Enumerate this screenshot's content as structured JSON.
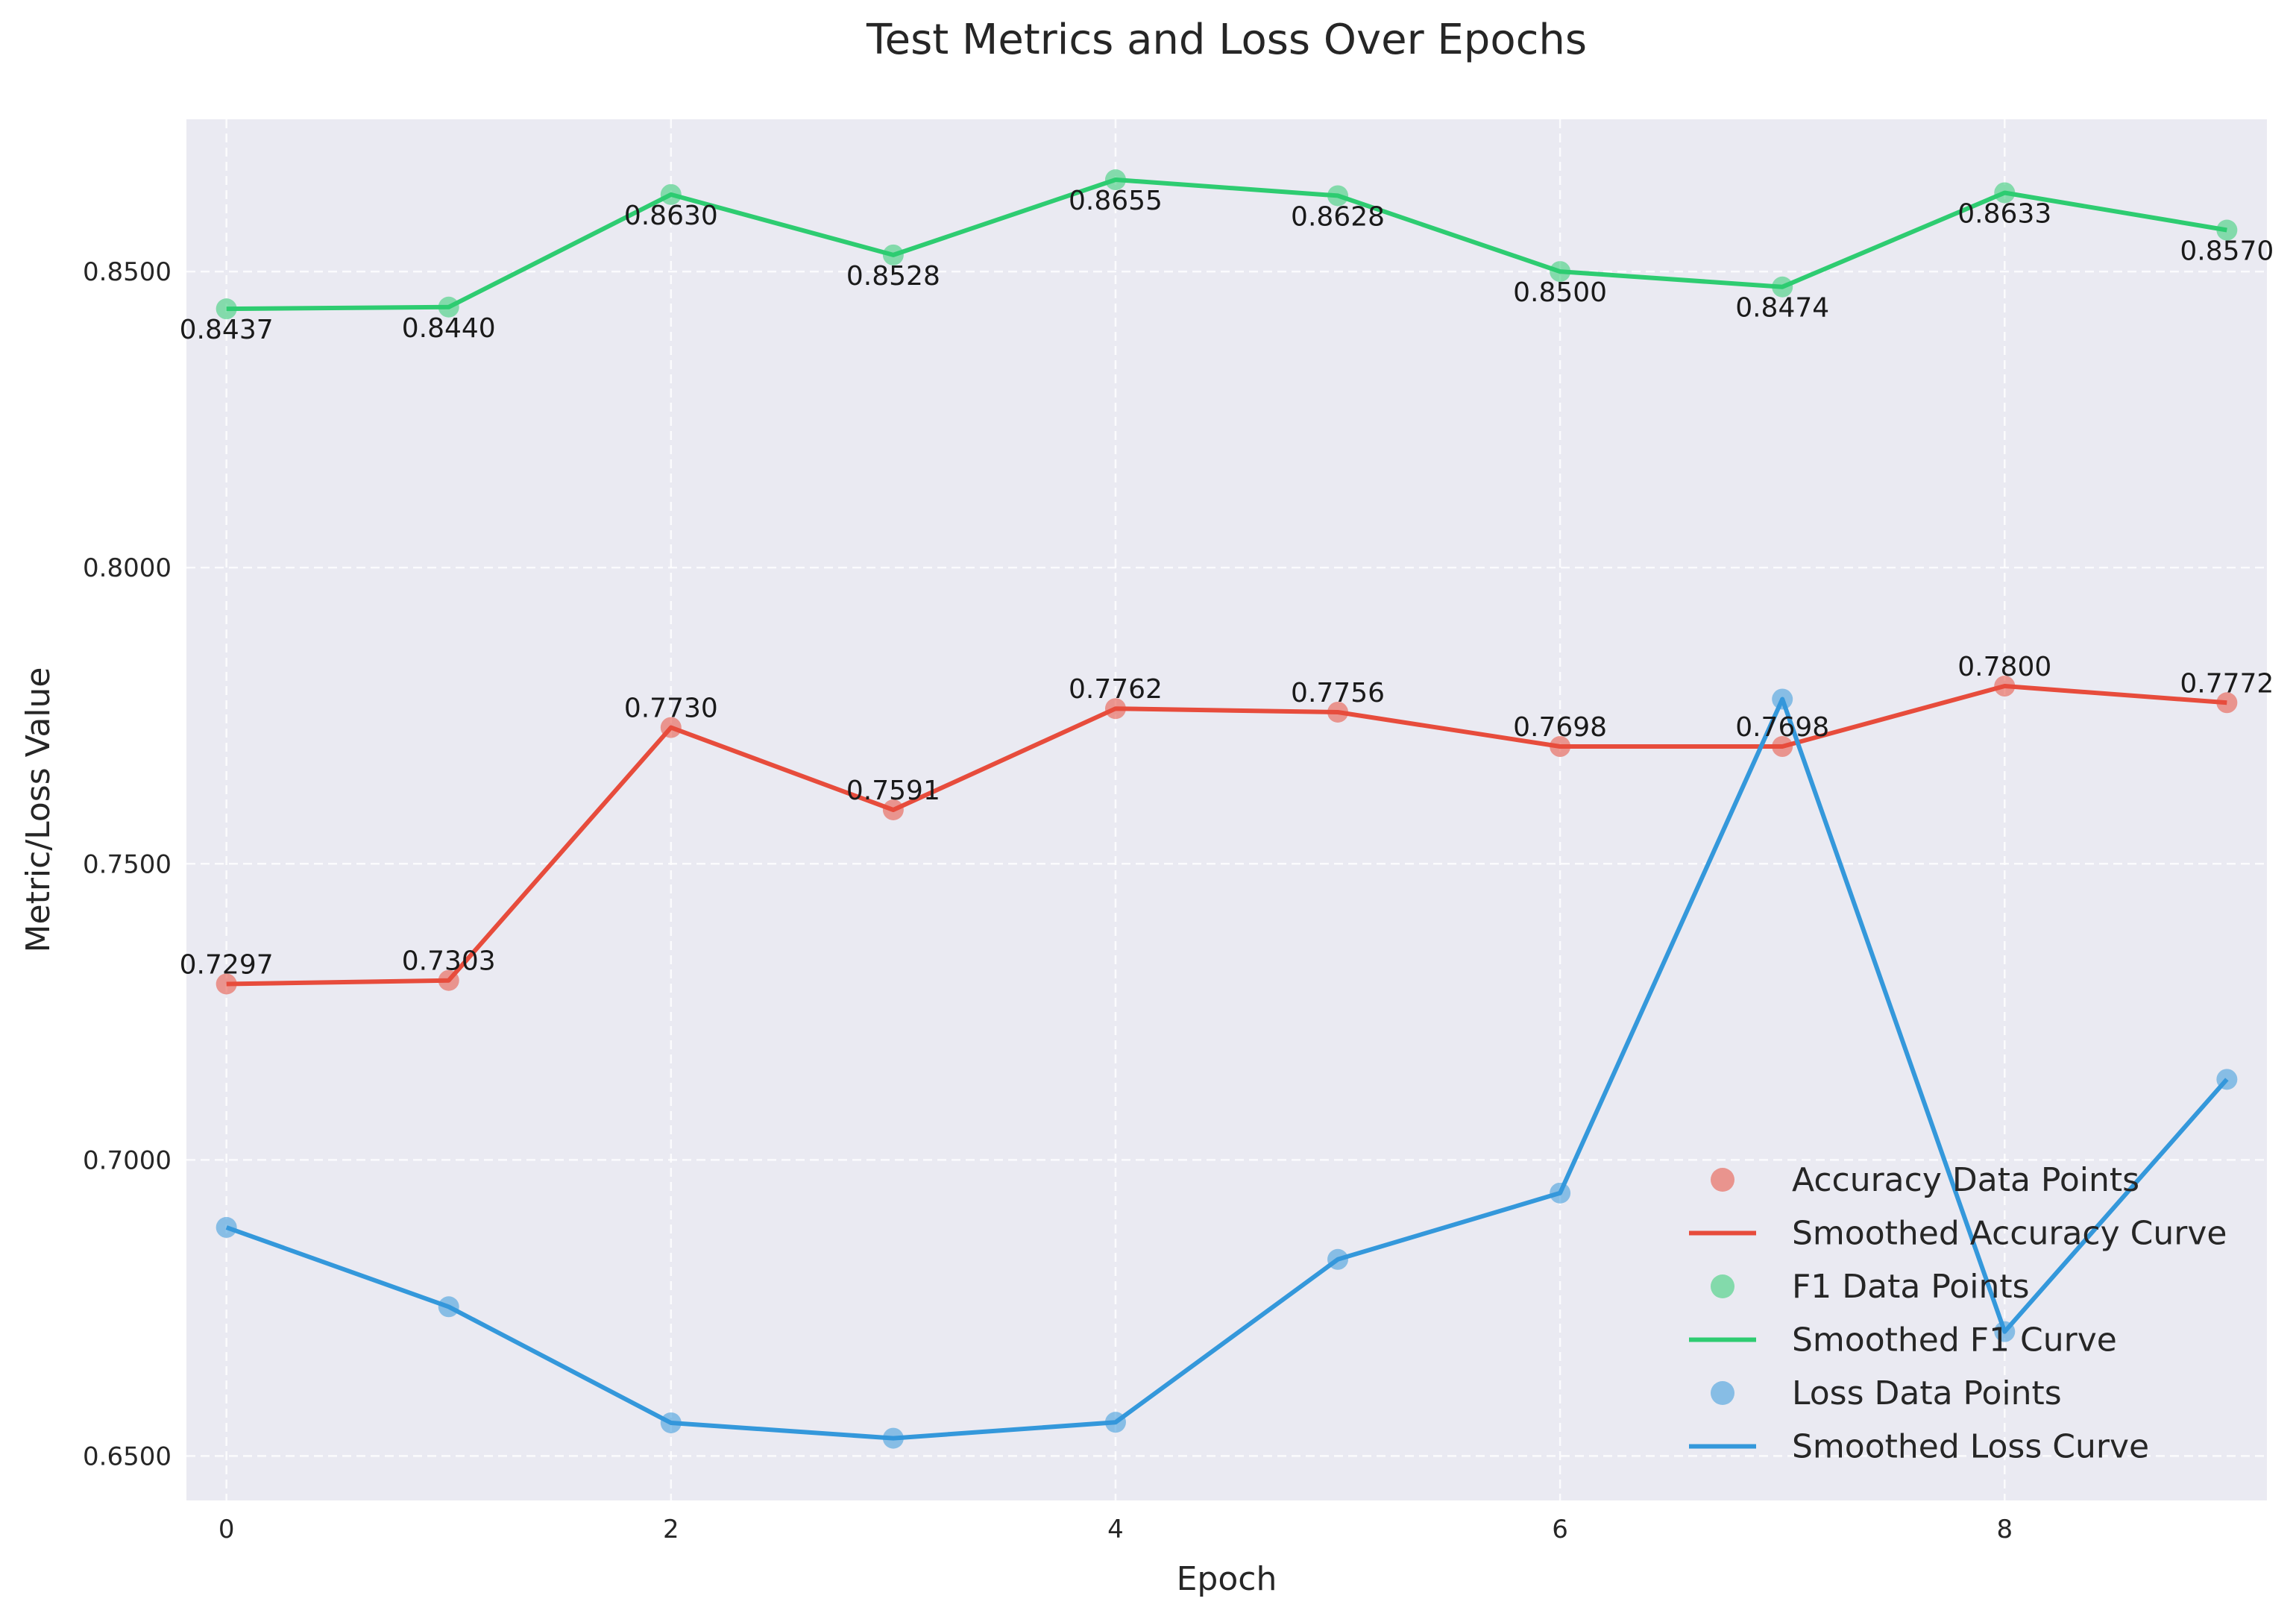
{
  "chart_data": {
    "type": "line",
    "title": "Test Metrics and Loss Over Epochs",
    "xlabel": "Epoch",
    "ylabel": "Metric/Loss Value",
    "x": [
      0,
      1,
      2,
      3,
      4,
      5,
      6,
      7,
      8,
      9
    ],
    "xlim": [
      -0.18,
      9.18
    ],
    "ylim": [
      0.6425,
      0.8757
    ],
    "x_ticks": [
      0,
      2,
      4,
      6,
      8
    ],
    "x_tick_labels": [
      "0",
      "2",
      "4",
      "6",
      "8"
    ],
    "y_ticks": [
      0.65,
      0.7,
      0.75,
      0.8,
      0.85
    ],
    "y_tick_labels": [
      "0.6500",
      "0.7000",
      "0.7500",
      "0.8000",
      "0.8500"
    ],
    "grid": true,
    "legend_position": "lower-right",
    "series": [
      {
        "metric": "accuracy",
        "values": [
          0.7297,
          0.7303,
          0.773,
          0.7591,
          0.7762,
          0.7756,
          0.7698,
          0.7698,
          0.78,
          0.7772
        ],
        "data_labels": [
          "0.7297",
          "0.7303",
          "0.7730",
          "0.7591",
          "0.7762",
          "0.7756",
          "0.7698",
          "0.7698",
          "0.7800",
          "0.7772"
        ],
        "label_placement": "above",
        "color": "#e74c3c",
        "points_legend": "Accuracy Data Points",
        "curve_legend": "Smoothed Accuracy Curve"
      },
      {
        "metric": "f1",
        "values": [
          0.8437,
          0.844,
          0.863,
          0.8528,
          0.8655,
          0.8628,
          0.85,
          0.8474,
          0.8633,
          0.857
        ],
        "data_labels": [
          "0.8437",
          "0.8440",
          "0.8630",
          "0.8528",
          "0.8655",
          "0.8628",
          "0.8500",
          "0.8474",
          "0.8633",
          "0.8570"
        ],
        "label_placement": "below",
        "color": "#2ecc71",
        "points_legend": "F1 Data Points",
        "curve_legend": "Smoothed F1 Curve"
      },
      {
        "metric": "loss",
        "values": [
          0.6886,
          0.6752,
          0.6556,
          0.653,
          0.6557,
          0.6832,
          0.6944,
          0.7778,
          0.671,
          0.7136
        ],
        "data_labels": [],
        "label_placement": "none",
        "color": "#3498db",
        "points_legend": "Loss Data Points",
        "curve_legend": "Smoothed Loss Curve"
      }
    ]
  }
}
